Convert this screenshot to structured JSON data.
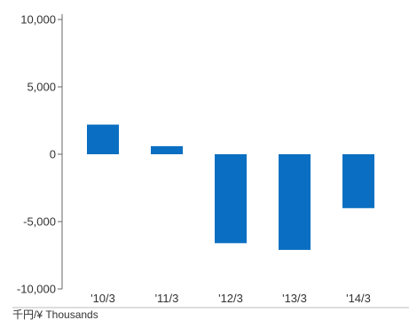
{
  "chart_data": {
    "type": "bar",
    "categories": [
      "'10/3",
      "'11/3",
      "'12/3",
      "'13/3",
      "'14/3"
    ],
    "values": [
      2200,
      600,
      -6600,
      -7100,
      -4000
    ],
    "y_ticks": [
      10000,
      5000,
      0,
      -5000,
      -10000
    ],
    "y_tick_labels": [
      "10,000",
      "5,000",
      "0",
      "-5,000",
      "-10,000"
    ],
    "ylim": [
      -10000,
      10000
    ],
    "unit_label": "千円/¥ Thousands",
    "grid": false,
    "colors": {
      "bar": "#0a6fc2",
      "axis": "#666666",
      "text": "#333333"
    }
  }
}
